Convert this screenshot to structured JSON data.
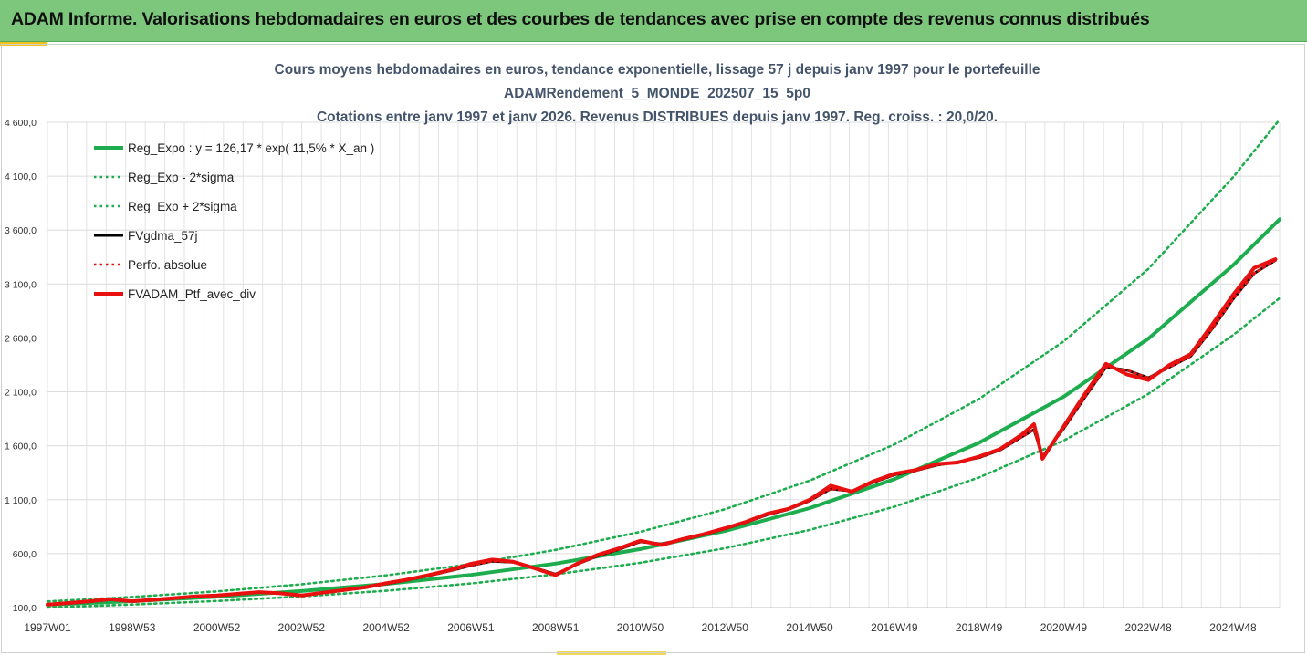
{
  "header": {
    "banner_title": "ADAM Informe. Valorisations hebdomadaires en euros et des courbes de tendances avec prise en compte des revenus connus distribués"
  },
  "chart_data": {
    "type": "line",
    "title_lines": [
      "Cours moyens hebdomadaires  en euros, tendance exponentielle, lissage 57 j depuis janv 1997 pour le portefeuille",
      "ADAMRendement_5_MONDE_202507_15_5p0",
      "Cotations entre janv 1997 et janv 2026. Revenus DISTRIBUES depuis janv 1997. Reg. croiss. : 20,0/20."
    ],
    "xlabel": "",
    "ylabel": "",
    "x_range": [
      1997.0,
      2026.1
    ],
    "ylim": [
      100,
      4600
    ],
    "y_ticks": [
      {
        "value": 100,
        "label": "100,0"
      },
      {
        "value": 600,
        "label": "600,0"
      },
      {
        "value": 1100,
        "label": "1 100,0"
      },
      {
        "value": 1600,
        "label": "1 600,0"
      },
      {
        "value": 2100,
        "label": "2 100,0"
      },
      {
        "value": 2600,
        "label": "2 600,0"
      },
      {
        "value": 3100,
        "label": "3 100,0"
      },
      {
        "value": 3600,
        "label": "3 600,0"
      },
      {
        "value": 4100,
        "label": "4 100,0"
      },
      {
        "value": 4600,
        "label": "4 600,0"
      }
    ],
    "x_ticks": [
      {
        "value": 1997.0,
        "label": "1997W01"
      },
      {
        "value": 1999.0,
        "label": "1998W53"
      },
      {
        "value": 2001.0,
        "label": "2000W52"
      },
      {
        "value": 2003.0,
        "label": "2002W52"
      },
      {
        "value": 2005.0,
        "label": "2004W52"
      },
      {
        "value": 2007.0,
        "label": "2006W51"
      },
      {
        "value": 2009.0,
        "label": "2008W51"
      },
      {
        "value": 2011.0,
        "label": "2010W50"
      },
      {
        "value": 2013.0,
        "label": "2012W50"
      },
      {
        "value": 2015.0,
        "label": "2014W50"
      },
      {
        "value": 2017.0,
        "label": "2016W49"
      },
      {
        "value": 2019.0,
        "label": "2018W49"
      },
      {
        "value": 2021.0,
        "label": "2020W49"
      },
      {
        "value": 2023.0,
        "label": "2022W48"
      },
      {
        "value": 2025.0,
        "label": "2024W48"
      }
    ],
    "grid": true,
    "legend_position": "top-left",
    "series": [
      {
        "name": "Reg_Expo : y = 126,17 * exp( 11,5% *  X_an )",
        "style": "solid-thick",
        "color": "#1ead4e",
        "x": [
          1997.0,
          1999.0,
          2001.0,
          2003.0,
          2005.0,
          2007.0,
          2009.0,
          2011.0,
          2013.0,
          2015.0,
          2017.0,
          2019.0,
          2021.0,
          2023.0,
          2025.0,
          2026.1
        ],
        "values": [
          126,
          159,
          201,
          253,
          319,
          403,
          508,
          642,
          810,
          1022,
          1290,
          1628,
          2055,
          2594,
          3274,
          3700
        ]
      },
      {
        "name": "Reg_Exp - 2*sigma",
        "style": "dotted",
        "color": "#1ead4e",
        "x": [
          1997.0,
          1999.0,
          2001.0,
          2003.0,
          2005.0,
          2007.0,
          2009.0,
          2011.0,
          2013.0,
          2015.0,
          2017.0,
          2019.0,
          2021.0,
          2023.0,
          2025.0,
          2026.1
        ],
        "values": [
          101,
          128,
          161,
          203,
          256,
          323,
          408,
          515,
          650,
          820,
          1035,
          1306,
          1648,
          2081,
          2626,
          2969
        ]
      },
      {
        "name": "Reg_Exp + 2*sigma",
        "style": "dotted",
        "color": "#1ead4e",
        "x": [
          1997.0,
          1999.0,
          2001.0,
          2003.0,
          2005.0,
          2007.0,
          2009.0,
          2011.0,
          2013.0,
          2015.0,
          2017.0,
          2019.0,
          2021.0,
          2023.0,
          2025.0,
          2026.1
        ],
        "values": [
          157,
          198,
          250,
          316,
          399,
          503,
          635,
          802,
          1012,
          1277,
          1612,
          2034,
          2568,
          3241,
          4090,
          4625
        ]
      },
      {
        "name": "FVgdma_57j",
        "style": "solid-medium",
        "color": "#000000",
        "x": [
          1997.0,
          1997.5,
          1998.0,
          1998.5,
          1999.0,
          1999.5,
          2000.0,
          2000.5,
          2001.0,
          2001.5,
          2002.0,
          2002.5,
          2003.0,
          2003.5,
          2004.0,
          2004.5,
          2005.0,
          2005.5,
          2006.0,
          2006.5,
          2007.0,
          2007.5,
          2008.0,
          2008.5,
          2009.0,
          2009.5,
          2010.0,
          2010.5,
          2011.0,
          2011.5,
          2012.0,
          2012.5,
          2013.0,
          2013.5,
          2014.0,
          2014.5,
          2015.0,
          2015.5,
          2016.0,
          2016.5,
          2017.0,
          2017.5,
          2018.0,
          2018.5,
          2019.0,
          2019.5,
          2020.0,
          2020.3,
          2020.5,
          2021.0,
          2021.5,
          2022.0,
          2022.5,
          2023.0,
          2023.5,
          2024.0,
          2024.5,
          2025.0,
          2025.5,
          2026.0
        ],
        "values": [
          128,
          140,
          155,
          175,
          160,
          170,
          185,
          200,
          210,
          225,
          240,
          235,
          215,
          235,
          260,
          285,
          320,
          355,
          395,
          440,
          490,
          530,
          520,
          470,
          410,
          500,
          580,
          640,
          710,
          690,
          730,
          775,
          830,
          890,
          960,
          1010,
          1090,
          1200,
          1180,
          1260,
          1330,
          1370,
          1420,
          1450,
          1490,
          1560,
          1680,
          1750,
          1500,
          1760,
          2050,
          2330,
          2300,
          2230,
          2330,
          2430,
          2680,
          2960,
          3200,
          3320
        ]
      },
      {
        "name": "Perfo. absolue",
        "style": "dotted",
        "color": "#e8110f",
        "x": [
          1997.0,
          1997.5,
          1998.0,
          1998.5,
          1999.0,
          1999.5,
          2000.0,
          2000.5,
          2001.0,
          2001.5,
          2002.0,
          2002.5,
          2003.0,
          2003.5,
          2004.0,
          2004.5,
          2005.0,
          2005.5,
          2006.0,
          2006.5,
          2007.0,
          2007.5,
          2008.0,
          2008.5,
          2009.0,
          2009.5,
          2010.0,
          2010.5,
          2011.0,
          2011.5,
          2012.0,
          2012.5,
          2013.0,
          2013.5,
          2014.0,
          2014.5,
          2015.0,
          2015.5,
          2016.0,
          2016.5,
          2017.0,
          2017.5,
          2018.0,
          2018.5,
          2019.0,
          2019.5,
          2020.0,
          2020.3,
          2020.5,
          2021.0,
          2021.5,
          2022.0,
          2022.5,
          2023.0,
          2023.5,
          2024.0,
          2024.5,
          2025.0,
          2025.5,
          2026.0
        ],
        "values": [
          128,
          140,
          155,
          175,
          160,
          170,
          185,
          200,
          210,
          225,
          240,
          235,
          215,
          235,
          260,
          285,
          320,
          355,
          395,
          440,
          490,
          530,
          520,
          470,
          410,
          500,
          580,
          640,
          710,
          690,
          730,
          775,
          830,
          890,
          960,
          1010,
          1090,
          1200,
          1180,
          1260,
          1330,
          1370,
          1420,
          1450,
          1490,
          1560,
          1680,
          1750,
          1500,
          1760,
          2050,
          2330,
          2300,
          2230,
          2330,
          2430,
          2680,
          2960,
          3200,
          3320
        ]
      },
      {
        "name": "FVADAM_Ptf_avec_div",
        "style": "solid-thick",
        "color": "#e8110f",
        "x": [
          1997.0,
          1997.5,
          1998.0,
          1998.5,
          1999.0,
          1999.5,
          2000.0,
          2000.5,
          2001.0,
          2001.5,
          2002.0,
          2002.5,
          2003.0,
          2003.5,
          2004.0,
          2004.5,
          2005.0,
          2005.5,
          2006.0,
          2006.5,
          2007.0,
          2007.5,
          2008.0,
          2008.5,
          2009.0,
          2009.5,
          2010.0,
          2010.5,
          2011.0,
          2011.5,
          2012.0,
          2012.5,
          2013.0,
          2013.5,
          2014.0,
          2014.5,
          2015.0,
          2015.5,
          2016.0,
          2016.5,
          2017.0,
          2017.5,
          2018.0,
          2018.5,
          2019.0,
          2019.5,
          2020.0,
          2020.3,
          2020.5,
          2021.0,
          2021.5,
          2022.0,
          2022.5,
          2023.0,
          2023.5,
          2024.0,
          2024.5,
          2025.0,
          2025.5,
          2026.0
        ],
        "values": [
          128,
          142,
          158,
          178,
          158,
          172,
          188,
          203,
          212,
          228,
          243,
          232,
          212,
          238,
          262,
          288,
          325,
          360,
          400,
          448,
          505,
          545,
          525,
          465,
          400,
          505,
          590,
          650,
          720,
          680,
          735,
          780,
          835,
          895,
          970,
          1015,
          1100,
          1230,
          1175,
          1270,
          1340,
          1375,
          1430,
          1445,
          1500,
          1570,
          1700,
          1800,
          1480,
          1780,
          2080,
          2360,
          2260,
          2210,
          2350,
          2450,
          2720,
          3000,
          3250,
          3330
        ]
      }
    ]
  }
}
